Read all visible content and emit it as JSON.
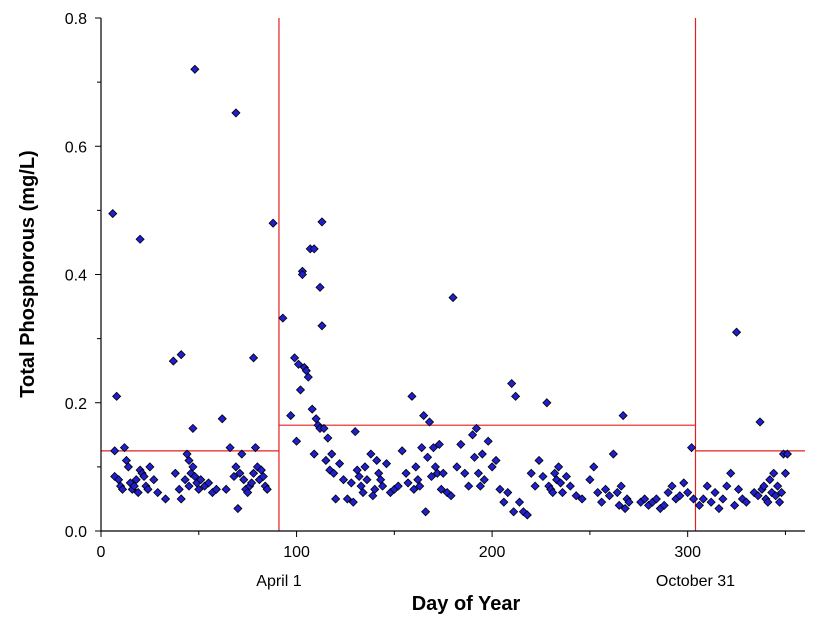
{
  "chart_data": {
    "type": "scatter",
    "xlabel": "Day of Year",
    "ylabel": "Total Phosphorous (mg/L)",
    "xlim": [
      0,
      360
    ],
    "ylim": [
      0,
      0.8
    ],
    "x_ticks": [
      0,
      100,
      200,
      300
    ],
    "x_tick_labels": [
      "0",
      "100",
      "200",
      "300"
    ],
    "y_ticks": [
      0,
      0.2,
      0.4,
      0.6,
      0.8
    ],
    "y_tick_labels": [
      "0.0",
      "0.2",
      "0.4",
      "0.6",
      "0.8"
    ],
    "grid": false,
    "marker": "diamond",
    "marker_color": "#1f1fcf",
    "line_color": "#e02020",
    "annotations": [
      {
        "x": 91,
        "text": "April 1"
      },
      {
        "x": 304,
        "text": "October 31"
      }
    ],
    "vertical_lines": [
      91,
      304
    ],
    "segments": [
      {
        "x0": 0,
        "x1": 91,
        "y": 0.125
      },
      {
        "x0": 91,
        "x1": 304,
        "y": 0.165
      },
      {
        "x0": 304,
        "x1": 360,
        "y": 0.125
      }
    ],
    "points": [
      [
        6,
        0.495
      ],
      [
        8,
        0.21
      ],
      [
        7,
        0.125
      ],
      [
        7,
        0.085
      ],
      [
        9,
        0.08
      ],
      [
        10,
        0.07
      ],
      [
        11,
        0.065
      ],
      [
        12,
        0.13
      ],
      [
        13,
        0.11
      ],
      [
        14,
        0.1
      ],
      [
        15,
        0.075
      ],
      [
        16,
        0.065
      ],
      [
        17,
        0.07
      ],
      [
        18,
        0.08
      ],
      [
        19,
        0.06
      ],
      [
        20,
        0.455
      ],
      [
        20,
        0.095
      ],
      [
        21,
        0.09
      ],
      [
        22,
        0.085
      ],
      [
        23,
        0.07
      ],
      [
        24,
        0.065
      ],
      [
        25,
        0.1
      ],
      [
        27,
        0.08
      ],
      [
        29,
        0.06
      ],
      [
        33,
        0.05
      ],
      [
        37,
        0.265
      ],
      [
        38,
        0.09
      ],
      [
        40,
        0.065
      ],
      [
        41,
        0.275
      ],
      [
        41,
        0.05
      ],
      [
        43,
        0.08
      ],
      [
        44,
        0.12
      ],
      [
        45,
        0.11
      ],
      [
        45,
        0.07
      ],
      [
        46,
        0.09
      ],
      [
        47,
        0.16
      ],
      [
        47,
        0.1
      ],
      [
        48,
        0.72
      ],
      [
        48,
        0.085
      ],
      [
        49,
        0.075
      ],
      [
        50,
        0.065
      ],
      [
        51,
        0.08
      ],
      [
        53,
        0.07
      ],
      [
        55,
        0.075
      ],
      [
        57,
        0.06
      ],
      [
        59,
        0.065
      ],
      [
        62,
        0.175
      ],
      [
        64,
        0.065
      ],
      [
        66,
        0.13
      ],
      [
        68,
        0.085
      ],
      [
        69,
        0.652
      ],
      [
        69,
        0.1
      ],
      [
        70,
        0.035
      ],
      [
        71,
        0.09
      ],
      [
        72,
        0.12
      ],
      [
        73,
        0.08
      ],
      [
        74,
        0.065
      ],
      [
        75,
        0.06
      ],
      [
        76,
        0.07
      ],
      [
        77,
        0.075
      ],
      [
        78,
        0.27
      ],
      [
        78,
        0.09
      ],
      [
        79,
        0.13
      ],
      [
        80,
        0.1
      ],
      [
        81,
        0.08
      ],
      [
        82,
        0.095
      ],
      [
        83,
        0.085
      ],
      [
        84,
        0.07
      ],
      [
        85,
        0.065
      ],
      [
        88,
        0.48
      ],
      [
        93,
        0.332
      ],
      [
        97,
        0.18
      ],
      [
        99,
        0.27
      ],
      [
        100,
        0.14
      ],
      [
        101,
        0.26
      ],
      [
        102,
        0.22
      ],
      [
        103,
        0.405
      ],
      [
        103,
        0.4
      ],
      [
        104,
        0.255
      ],
      [
        105,
        0.25
      ],
      [
        106,
        0.24
      ],
      [
        107,
        0.44
      ],
      [
        108,
        0.19
      ],
      [
        109,
        0.12
      ],
      [
        109,
        0.44
      ],
      [
        110,
        0.175
      ],
      [
        111,
        0.165
      ],
      [
        112,
        0.16
      ],
      [
        112,
        0.38
      ],
      [
        113,
        0.482
      ],
      [
        113,
        0.32
      ],
      [
        114,
        0.16
      ],
      [
        115,
        0.11
      ],
      [
        116,
        0.145
      ],
      [
        117,
        0.095
      ],
      [
        118,
        0.12
      ],
      [
        119,
        0.09
      ],
      [
        120,
        0.05
      ],
      [
        122,
        0.105
      ],
      [
        124,
        0.08
      ],
      [
        126,
        0.05
      ],
      [
        128,
        0.075
      ],
      [
        129,
        0.045
      ],
      [
        130,
        0.155
      ],
      [
        131,
        0.095
      ],
      [
        132,
        0.085
      ],
      [
        133,
        0.07
      ],
      [
        134,
        0.06
      ],
      [
        135,
        0.1
      ],
      [
        136,
        0.08
      ],
      [
        138,
        0.12
      ],
      [
        139,
        0.055
      ],
      [
        140,
        0.065
      ],
      [
        141,
        0.11
      ],
      [
        142,
        0.09
      ],
      [
        143,
        0.08
      ],
      [
        144,
        0.07
      ],
      [
        146,
        0.105
      ],
      [
        148,
        0.06
      ],
      [
        150,
        0.065
      ],
      [
        152,
        0.07
      ],
      [
        154,
        0.125
      ],
      [
        156,
        0.09
      ],
      [
        157,
        0.075
      ],
      [
        159,
        0.21
      ],
      [
        160,
        0.065
      ],
      [
        161,
        0.1
      ],
      [
        162,
        0.08
      ],
      [
        163,
        0.07
      ],
      [
        164,
        0.13
      ],
      [
        165,
        0.18
      ],
      [
        166,
        0.03
      ],
      [
        167,
        0.115
      ],
      [
        168,
        0.17
      ],
      [
        169,
        0.085
      ],
      [
        170,
        0.13
      ],
      [
        171,
        0.1
      ],
      [
        172,
        0.09
      ],
      [
        173,
        0.135
      ],
      [
        174,
        0.065
      ],
      [
        175,
        0.09
      ],
      [
        177,
        0.06
      ],
      [
        179,
        0.055
      ],
      [
        180,
        0.364
      ],
      [
        182,
        0.1
      ],
      [
        184,
        0.135
      ],
      [
        186,
        0.09
      ],
      [
        188,
        0.07
      ],
      [
        190,
        0.15
      ],
      [
        191,
        0.115
      ],
      [
        192,
        0.16
      ],
      [
        193,
        0.09
      ],
      [
        194,
        0.07
      ],
      [
        195,
        0.12
      ],
      [
        196,
        0.08
      ],
      [
        198,
        0.14
      ],
      [
        200,
        0.1
      ],
      [
        202,
        0.11
      ],
      [
        204,
        0.065
      ],
      [
        206,
        0.045
      ],
      [
        208,
        0.06
      ],
      [
        210,
        0.23
      ],
      [
        211,
        0.03
      ],
      [
        212,
        0.21
      ],
      [
        214,
        0.045
      ],
      [
        216,
        0.03
      ],
      [
        218,
        0.025
      ],
      [
        220,
        0.09
      ],
      [
        222,
        0.07
      ],
      [
        224,
        0.11
      ],
      [
        226,
        0.085
      ],
      [
        228,
        0.2
      ],
      [
        229,
        0.07
      ],
      [
        230,
        0.065
      ],
      [
        231,
        0.06
      ],
      [
        232,
        0.09
      ],
      [
        233,
        0.08
      ],
      [
        234,
        0.1
      ],
      [
        235,
        0.075
      ],
      [
        236,
        0.06
      ],
      [
        238,
        0.085
      ],
      [
        240,
        0.07
      ],
      [
        243,
        0.055
      ],
      [
        246,
        0.05
      ],
      [
        250,
        0.08
      ],
      [
        252,
        0.1
      ],
      [
        254,
        0.06
      ],
      [
        256,
        0.045
      ],
      [
        258,
        0.065
      ],
      [
        260,
        0.055
      ],
      [
        262,
        0.12
      ],
      [
        264,
        0.06
      ],
      [
        265,
        0.04
      ],
      [
        266,
        0.07
      ],
      [
        267,
        0.18
      ],
      [
        268,
        0.035
      ],
      [
        269,
        0.05
      ],
      [
        270,
        0.045
      ],
      [
        276,
        0.045
      ],
      [
        278,
        0.05
      ],
      [
        280,
        0.04
      ],
      [
        282,
        0.045
      ],
      [
        284,
        0.05
      ],
      [
        286,
        0.035
      ],
      [
        288,
        0.04
      ],
      [
        290,
        0.06
      ],
      [
        292,
        0.07
      ],
      [
        294,
        0.05
      ],
      [
        296,
        0.055
      ],
      [
        298,
        0.075
      ],
      [
        300,
        0.06
      ],
      [
        302,
        0.13
      ],
      [
        303,
        0.05
      ],
      [
        306,
        0.04
      ],
      [
        308,
        0.05
      ],
      [
        310,
        0.07
      ],
      [
        312,
        0.045
      ],
      [
        314,
        0.06
      ],
      [
        316,
        0.035
      ],
      [
        318,
        0.05
      ],
      [
        320,
        0.07
      ],
      [
        322,
        0.09
      ],
      [
        324,
        0.04
      ],
      [
        325,
        0.31
      ],
      [
        326,
        0.065
      ],
      [
        328,
        0.05
      ],
      [
        330,
        0.045
      ],
      [
        334,
        0.06
      ],
      [
        336,
        0.055
      ],
      [
        337,
        0.17
      ],
      [
        338,
        0.065
      ],
      [
        339,
        0.07
      ],
      [
        340,
        0.05
      ],
      [
        341,
        0.045
      ],
      [
        342,
        0.08
      ],
      [
        343,
        0.06
      ],
      [
        344,
        0.09
      ],
      [
        345,
        0.055
      ],
      [
        346,
        0.07
      ],
      [
        347,
        0.045
      ],
      [
        348,
        0.06
      ],
      [
        349,
        0.12
      ],
      [
        350,
        0.09
      ],
      [
        351,
        0.12
      ]
    ]
  }
}
